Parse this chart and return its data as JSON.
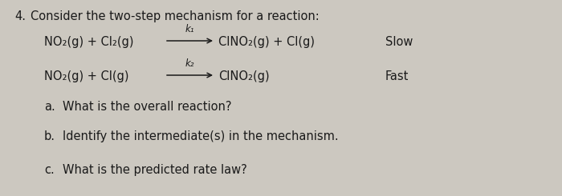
{
  "background_color": "#ccc8c0",
  "text_color": "#1a1a1a",
  "question_number": "4.",
  "question_intro": "Consider the two-step mechanism for a reaction:",
  "step1_left": "NO₂(g) + Cl₂(g)",
  "step1_k": "k₁",
  "step1_right": "CINO₂(g) + Cl(g)",
  "step1_rate": "Slow",
  "step2_left": "NO₂(g) + Cl(g)",
  "step2_k": "k₂",
  "step2_right": "CINO₂(g)",
  "step2_rate": "Fast",
  "part_a_label": "a.",
  "part_a_text": "What is the overall reaction?",
  "part_b_label": "b.",
  "part_b_text": "Identify the intermediate(s) in the mechanism.",
  "part_c_label": "c.",
  "part_c_text": "What is the predicted rate law?",
  "font_size_main": 10.5,
  "font_size_small": 8.5
}
